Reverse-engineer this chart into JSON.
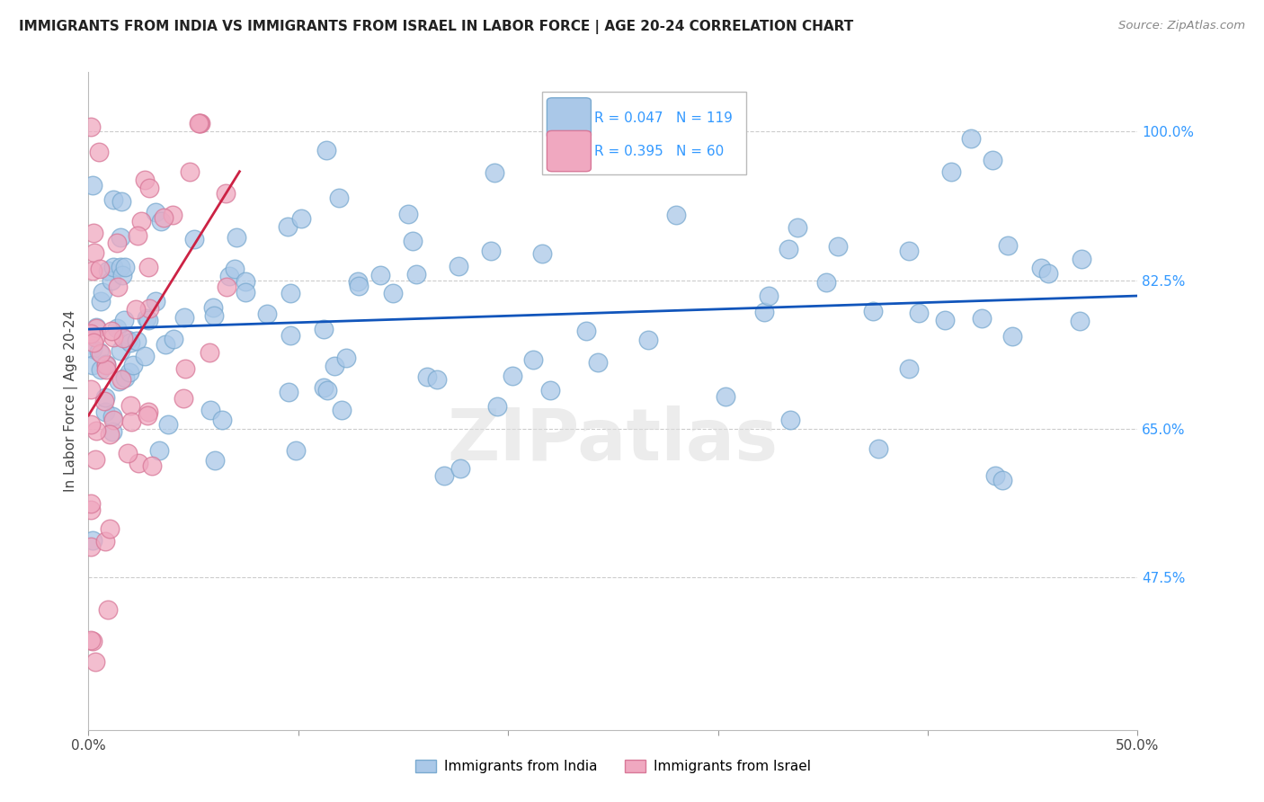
{
  "title": "IMMIGRANTS FROM INDIA VS IMMIGRANTS FROM ISRAEL IN LABOR FORCE | AGE 20-24 CORRELATION CHART",
  "source": "Source: ZipAtlas.com",
  "ylabel": "In Labor Force | Age 20-24",
  "xlim": [
    0.0,
    0.5
  ],
  "ylim": [
    0.295,
    1.07
  ],
  "x_ticks": [
    0.0,
    0.1,
    0.2,
    0.3,
    0.4,
    0.5
  ],
  "x_tick_labels": [
    "0.0%",
    "",
    "",
    "",
    "",
    "50.0%"
  ],
  "y_ticks": [
    0.475,
    0.65,
    0.825,
    1.0
  ],
  "y_tick_labels": [
    "47.5%",
    "65.0%",
    "82.5%",
    "100.0%"
  ],
  "india_R": 0.047,
  "india_N": 119,
  "israel_R": 0.395,
  "israel_N": 60,
  "india_color": "#aac8e8",
  "india_edge_color": "#7aaad0",
  "israel_color": "#f0a8c0",
  "israel_edge_color": "#d87898",
  "india_line_color": "#1155bb",
  "israel_line_color": "#cc2244",
  "watermark": "ZIPatlas",
  "legend_india_color": "#aac8e8",
  "legend_israel_color": "#f0a8c0"
}
